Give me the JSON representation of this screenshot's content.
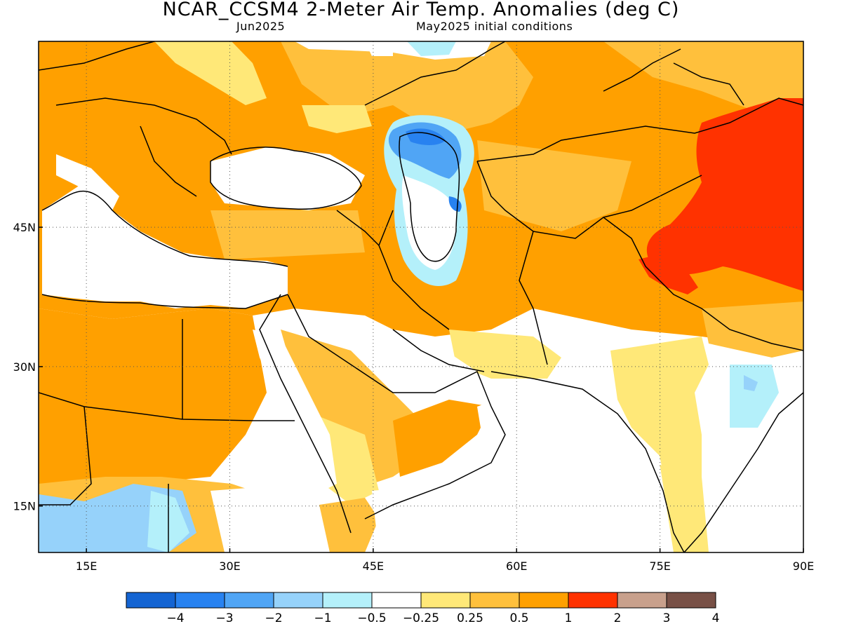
{
  "header": {
    "title": "NCAR_CCSM4 2-Meter Air Temp. Anomalies (deg C)",
    "target_month": "Jun2025",
    "init_label": "May2025 initial conditions"
  },
  "map": {
    "lon_range": [
      10,
      90
    ],
    "lat_range": [
      10,
      65
    ],
    "lon_ticks": [
      {
        "value": 15,
        "label": "15E"
      },
      {
        "value": 30,
        "label": "30E"
      },
      {
        "value": 45,
        "label": "45E"
      },
      {
        "value": 60,
        "label": "60E"
      },
      {
        "value": 75,
        "label": "75E"
      },
      {
        "value": 90,
        "label": "90E"
      }
    ],
    "lat_ticks": [
      {
        "value": 45,
        "label": "45N"
      },
      {
        "value": 30,
        "label": "30N"
      },
      {
        "value": 15,
        "label": "15N"
      }
    ],
    "gridlines": "dotted"
  },
  "colorbar": {
    "colors": [
      "#1464d2",
      "#2882f0",
      "#50a5f5",
      "#96d2fa",
      "#b4f0fa",
      "#ffffff",
      "#ffe878",
      "#ffc03c",
      "#ffa000",
      "#ff3200",
      "#c8a08c",
      "#785046"
    ],
    "labels": [
      "-4",
      "-3",
      "-2",
      "-1",
      "-0.5",
      "-0.25",
      "0.25",
      "0.5",
      "1",
      "2",
      "3",
      "4"
    ]
  }
}
